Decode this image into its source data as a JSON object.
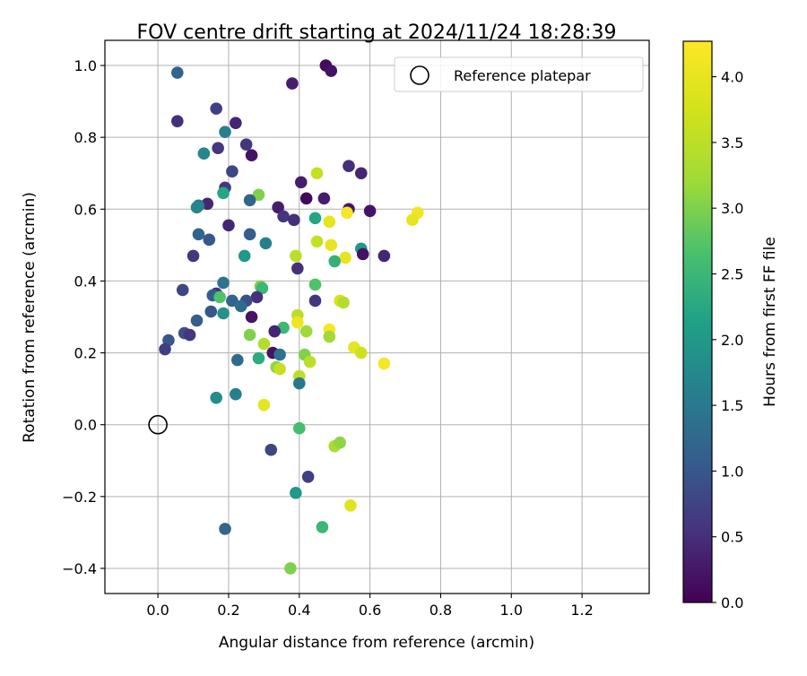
{
  "chart_data": {
    "type": "scatter",
    "title": "FOV centre drift starting at 2024/11/24 18:28:39",
    "xlabel": "Angular distance from reference (arcmin)",
    "ylabel": "Rotation from reference (arcmin)",
    "xlim": [
      -0.15,
      1.39
    ],
    "ylim": [
      -0.47,
      1.07
    ],
    "xticks": [
      0.0,
      0.2,
      0.4,
      0.6,
      0.8,
      1.0,
      1.2
    ],
    "xtick_labels": [
      "0.0",
      "0.2",
      "0.4",
      "0.6",
      "0.8",
      "1.0",
      "1.2"
    ],
    "yticks": [
      -0.4,
      -0.2,
      0.0,
      0.2,
      0.4,
      0.6,
      0.8,
      1.0
    ],
    "ytick_labels": [
      "−0.4",
      "−0.2",
      "0.0",
      "0.2",
      "0.4",
      "0.6",
      "0.8",
      "1.0"
    ],
    "grid": true,
    "legend": {
      "position": "top-right",
      "entries": [
        {
          "label": "Reference platepar",
          "marker": "open-circle"
        }
      ]
    },
    "reference_point": {
      "x": 0.0,
      "y": 0.0
    },
    "colorbar": {
      "label": "Hours from first FF file",
      "colormap": "viridis",
      "range": [
        0.0,
        4.27
      ],
      "ticks": [
        0.0,
        0.5,
        1.0,
        1.5,
        2.0,
        2.5,
        3.0,
        3.5,
        4.0
      ],
      "tick_labels": [
        "0.0",
        "0.5",
        "1.0",
        "1.5",
        "2.0",
        "2.5",
        "3.0",
        "3.5",
        "4.0"
      ]
    },
    "series": [
      {
        "points": [
          {
            "x": 0.475,
            "y": 1.0,
            "c": 0.1
          },
          {
            "x": 0.49,
            "y": 0.985,
            "c": 0.2
          },
          {
            "x": 0.38,
            "y": 0.95,
            "c": 0.3
          },
          {
            "x": 0.055,
            "y": 0.98,
            "c": 1.2
          },
          {
            "x": 0.165,
            "y": 0.88,
            "c": 0.7
          },
          {
            "x": 0.22,
            "y": 0.84,
            "c": 0.4
          },
          {
            "x": 0.055,
            "y": 0.845,
            "c": 0.5
          },
          {
            "x": 0.19,
            "y": 0.815,
            "c": 1.6
          },
          {
            "x": 0.25,
            "y": 0.78,
            "c": 0.6
          },
          {
            "x": 0.17,
            "y": 0.77,
            "c": 0.6
          },
          {
            "x": 0.265,
            "y": 0.75,
            "c": 0.2
          },
          {
            "x": 0.13,
            "y": 0.755,
            "c": 1.7
          },
          {
            "x": 0.54,
            "y": 0.72,
            "c": 0.5
          },
          {
            "x": 0.575,
            "y": 0.7,
            "c": 0.4
          },
          {
            "x": 0.21,
            "y": 0.705,
            "c": 0.8
          },
          {
            "x": 0.45,
            "y": 0.7,
            "c": 3.6
          },
          {
            "x": 0.405,
            "y": 0.675,
            "c": 0.3
          },
          {
            "x": 0.19,
            "y": 0.66,
            "c": 0.6
          },
          {
            "x": 0.185,
            "y": 0.645,
            "c": 2.2
          },
          {
            "x": 0.285,
            "y": 0.64,
            "c": 3.0
          },
          {
            "x": 0.42,
            "y": 0.63,
            "c": 0.1
          },
          {
            "x": 0.47,
            "y": 0.63,
            "c": 0.3
          },
          {
            "x": 0.26,
            "y": 0.625,
            "c": 1.2
          },
          {
            "x": 0.14,
            "y": 0.615,
            "c": 0.4
          },
          {
            "x": 0.115,
            "y": 0.61,
            "c": 1.5
          },
          {
            "x": 0.11,
            "y": 0.605,
            "c": 1.7
          },
          {
            "x": 0.34,
            "y": 0.605,
            "c": 0.3
          },
          {
            "x": 0.54,
            "y": 0.6,
            "c": 0.2
          },
          {
            "x": 0.6,
            "y": 0.595,
            "c": 0.2
          },
          {
            "x": 0.535,
            "y": 0.59,
            "c": 4.2
          },
          {
            "x": 0.735,
            "y": 0.59,
            "c": 4.1
          },
          {
            "x": 0.355,
            "y": 0.58,
            "c": 0.6
          },
          {
            "x": 0.445,
            "y": 0.575,
            "c": 2.2
          },
          {
            "x": 0.385,
            "y": 0.57,
            "c": 0.5
          },
          {
            "x": 0.485,
            "y": 0.565,
            "c": 4.0
          },
          {
            "x": 0.72,
            "y": 0.57,
            "c": 4.0
          },
          {
            "x": 0.2,
            "y": 0.555,
            "c": 0.4
          },
          {
            "x": 0.115,
            "y": 0.53,
            "c": 1.2
          },
          {
            "x": 0.26,
            "y": 0.53,
            "c": 1.1
          },
          {
            "x": 0.145,
            "y": 0.515,
            "c": 1.0
          },
          {
            "x": 0.45,
            "y": 0.51,
            "c": 3.6
          },
          {
            "x": 0.305,
            "y": 0.505,
            "c": 1.6
          },
          {
            "x": 0.49,
            "y": 0.5,
            "c": 4.0
          },
          {
            "x": 0.575,
            "y": 0.49,
            "c": 2.0
          },
          {
            "x": 0.58,
            "y": 0.475,
            "c": 0.2
          },
          {
            "x": 0.64,
            "y": 0.47,
            "c": 0.4
          },
          {
            "x": 0.1,
            "y": 0.47,
            "c": 0.6
          },
          {
            "x": 0.245,
            "y": 0.47,
            "c": 2.0
          },
          {
            "x": 0.39,
            "y": 0.47,
            "c": 3.5
          },
          {
            "x": 0.53,
            "y": 0.465,
            "c": 4.0
          },
          {
            "x": 0.5,
            "y": 0.455,
            "c": 2.4
          },
          {
            "x": 0.395,
            "y": 0.435,
            "c": 0.5
          },
          {
            "x": 0.185,
            "y": 0.395,
            "c": 1.4
          },
          {
            "x": 0.445,
            "y": 0.39,
            "c": 2.7
          },
          {
            "x": 0.29,
            "y": 0.385,
            "c": 3.0
          },
          {
            "x": 0.295,
            "y": 0.38,
            "c": 2.5
          },
          {
            "x": 0.07,
            "y": 0.375,
            "c": 0.8
          },
          {
            "x": 0.165,
            "y": 0.365,
            "c": 0.5
          },
          {
            "x": 0.155,
            "y": 0.36,
            "c": 1.1
          },
          {
            "x": 0.175,
            "y": 0.355,
            "c": 2.7
          },
          {
            "x": 0.28,
            "y": 0.355,
            "c": 0.5
          },
          {
            "x": 0.21,
            "y": 0.345,
            "c": 1.2
          },
          {
            "x": 0.445,
            "y": 0.345,
            "c": 0.6
          },
          {
            "x": 0.515,
            "y": 0.345,
            "c": 3.8
          },
          {
            "x": 0.525,
            "y": 0.34,
            "c": 3.4
          },
          {
            "x": 0.25,
            "y": 0.345,
            "c": 0.9
          },
          {
            "x": 0.235,
            "y": 0.33,
            "c": 1.3
          },
          {
            "x": 0.15,
            "y": 0.315,
            "c": 1.0
          },
          {
            "x": 0.185,
            "y": 0.31,
            "c": 1.9
          },
          {
            "x": 0.265,
            "y": 0.3,
            "c": 0.2
          },
          {
            "x": 0.395,
            "y": 0.305,
            "c": 3.5
          },
          {
            "x": 0.11,
            "y": 0.29,
            "c": 1.1
          },
          {
            "x": 0.395,
            "y": 0.285,
            "c": 4.1
          },
          {
            "x": 0.355,
            "y": 0.27,
            "c": 2.5
          },
          {
            "x": 0.485,
            "y": 0.265,
            "c": 4.2
          },
          {
            "x": 0.42,
            "y": 0.26,
            "c": 3.2
          },
          {
            "x": 0.33,
            "y": 0.26,
            "c": 0.4
          },
          {
            "x": 0.075,
            "y": 0.255,
            "c": 0.9
          },
          {
            "x": 0.09,
            "y": 0.25,
            "c": 0.6
          },
          {
            "x": 0.26,
            "y": 0.25,
            "c": 3.0
          },
          {
            "x": 0.485,
            "y": 0.245,
            "c": 3.2
          },
          {
            "x": 0.03,
            "y": 0.235,
            "c": 1.0
          },
          {
            "x": 0.3,
            "y": 0.225,
            "c": 3.4
          },
          {
            "x": 0.555,
            "y": 0.215,
            "c": 4.0
          },
          {
            "x": 0.02,
            "y": 0.21,
            "c": 0.7
          },
          {
            "x": 0.575,
            "y": 0.2,
            "c": 3.7
          },
          {
            "x": 0.325,
            "y": 0.2,
            "c": 0.2
          },
          {
            "x": 0.345,
            "y": 0.195,
            "c": 1.4
          },
          {
            "x": 0.415,
            "y": 0.195,
            "c": 3.0
          },
          {
            "x": 0.285,
            "y": 0.185,
            "c": 2.3
          },
          {
            "x": 0.225,
            "y": 0.18,
            "c": 1.3
          },
          {
            "x": 0.43,
            "y": 0.175,
            "c": 3.5
          },
          {
            "x": 0.64,
            "y": 0.17,
            "c": 4.2
          },
          {
            "x": 0.335,
            "y": 0.16,
            "c": 3.1
          },
          {
            "x": 0.345,
            "y": 0.155,
            "c": 3.6
          },
          {
            "x": 0.4,
            "y": 0.135,
            "c": 3.5
          },
          {
            "x": 0.4,
            "y": 0.115,
            "c": 1.5
          },
          {
            "x": 0.22,
            "y": 0.085,
            "c": 1.6
          },
          {
            "x": 0.165,
            "y": 0.075,
            "c": 1.8
          },
          {
            "x": 0.3,
            "y": 0.055,
            "c": 4.0
          },
          {
            "x": 0.4,
            "y": -0.01,
            "c": 2.6
          },
          {
            "x": 0.5,
            "y": -0.06,
            "c": 3.3
          },
          {
            "x": 0.515,
            "y": -0.05,
            "c": 3.1
          },
          {
            "x": 0.32,
            "y": -0.07,
            "c": 0.8
          },
          {
            "x": 0.425,
            "y": -0.145,
            "c": 0.7
          },
          {
            "x": 0.39,
            "y": -0.19,
            "c": 2.0
          },
          {
            "x": 0.545,
            "y": -0.225,
            "c": 3.9
          },
          {
            "x": 0.19,
            "y": -0.29,
            "c": 1.2
          },
          {
            "x": 0.465,
            "y": -0.285,
            "c": 2.5
          },
          {
            "x": 0.375,
            "y": -0.4,
            "c": 3.0
          }
        ]
      }
    ]
  }
}
